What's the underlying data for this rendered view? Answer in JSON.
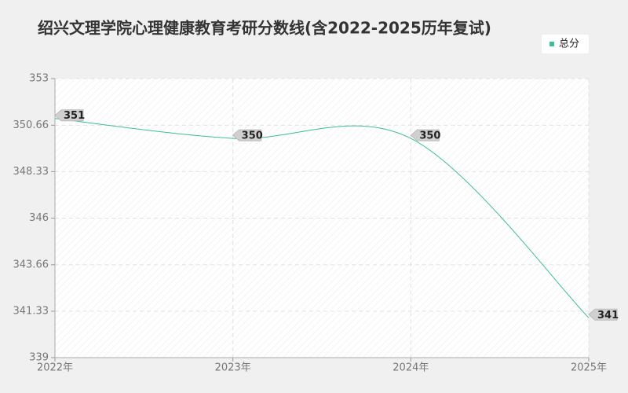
{
  "chart_data": {
    "type": "line",
    "title": "绍兴文理学院心理健康教育考研分数线(含2022-2025历年复试)",
    "categories": [
      "2022年",
      "2023年",
      "2024年",
      "2025年"
    ],
    "series": [
      {
        "name": "总分",
        "color": "#3dbd98",
        "values": [
          351,
          350,
          350,
          341
        ]
      }
    ],
    "ylim": [
      339,
      353
    ],
    "yticks": [
      339,
      341.33,
      343.66,
      346,
      348.33,
      350.66,
      353
    ],
    "grid": true,
    "legend": "top-right"
  }
}
